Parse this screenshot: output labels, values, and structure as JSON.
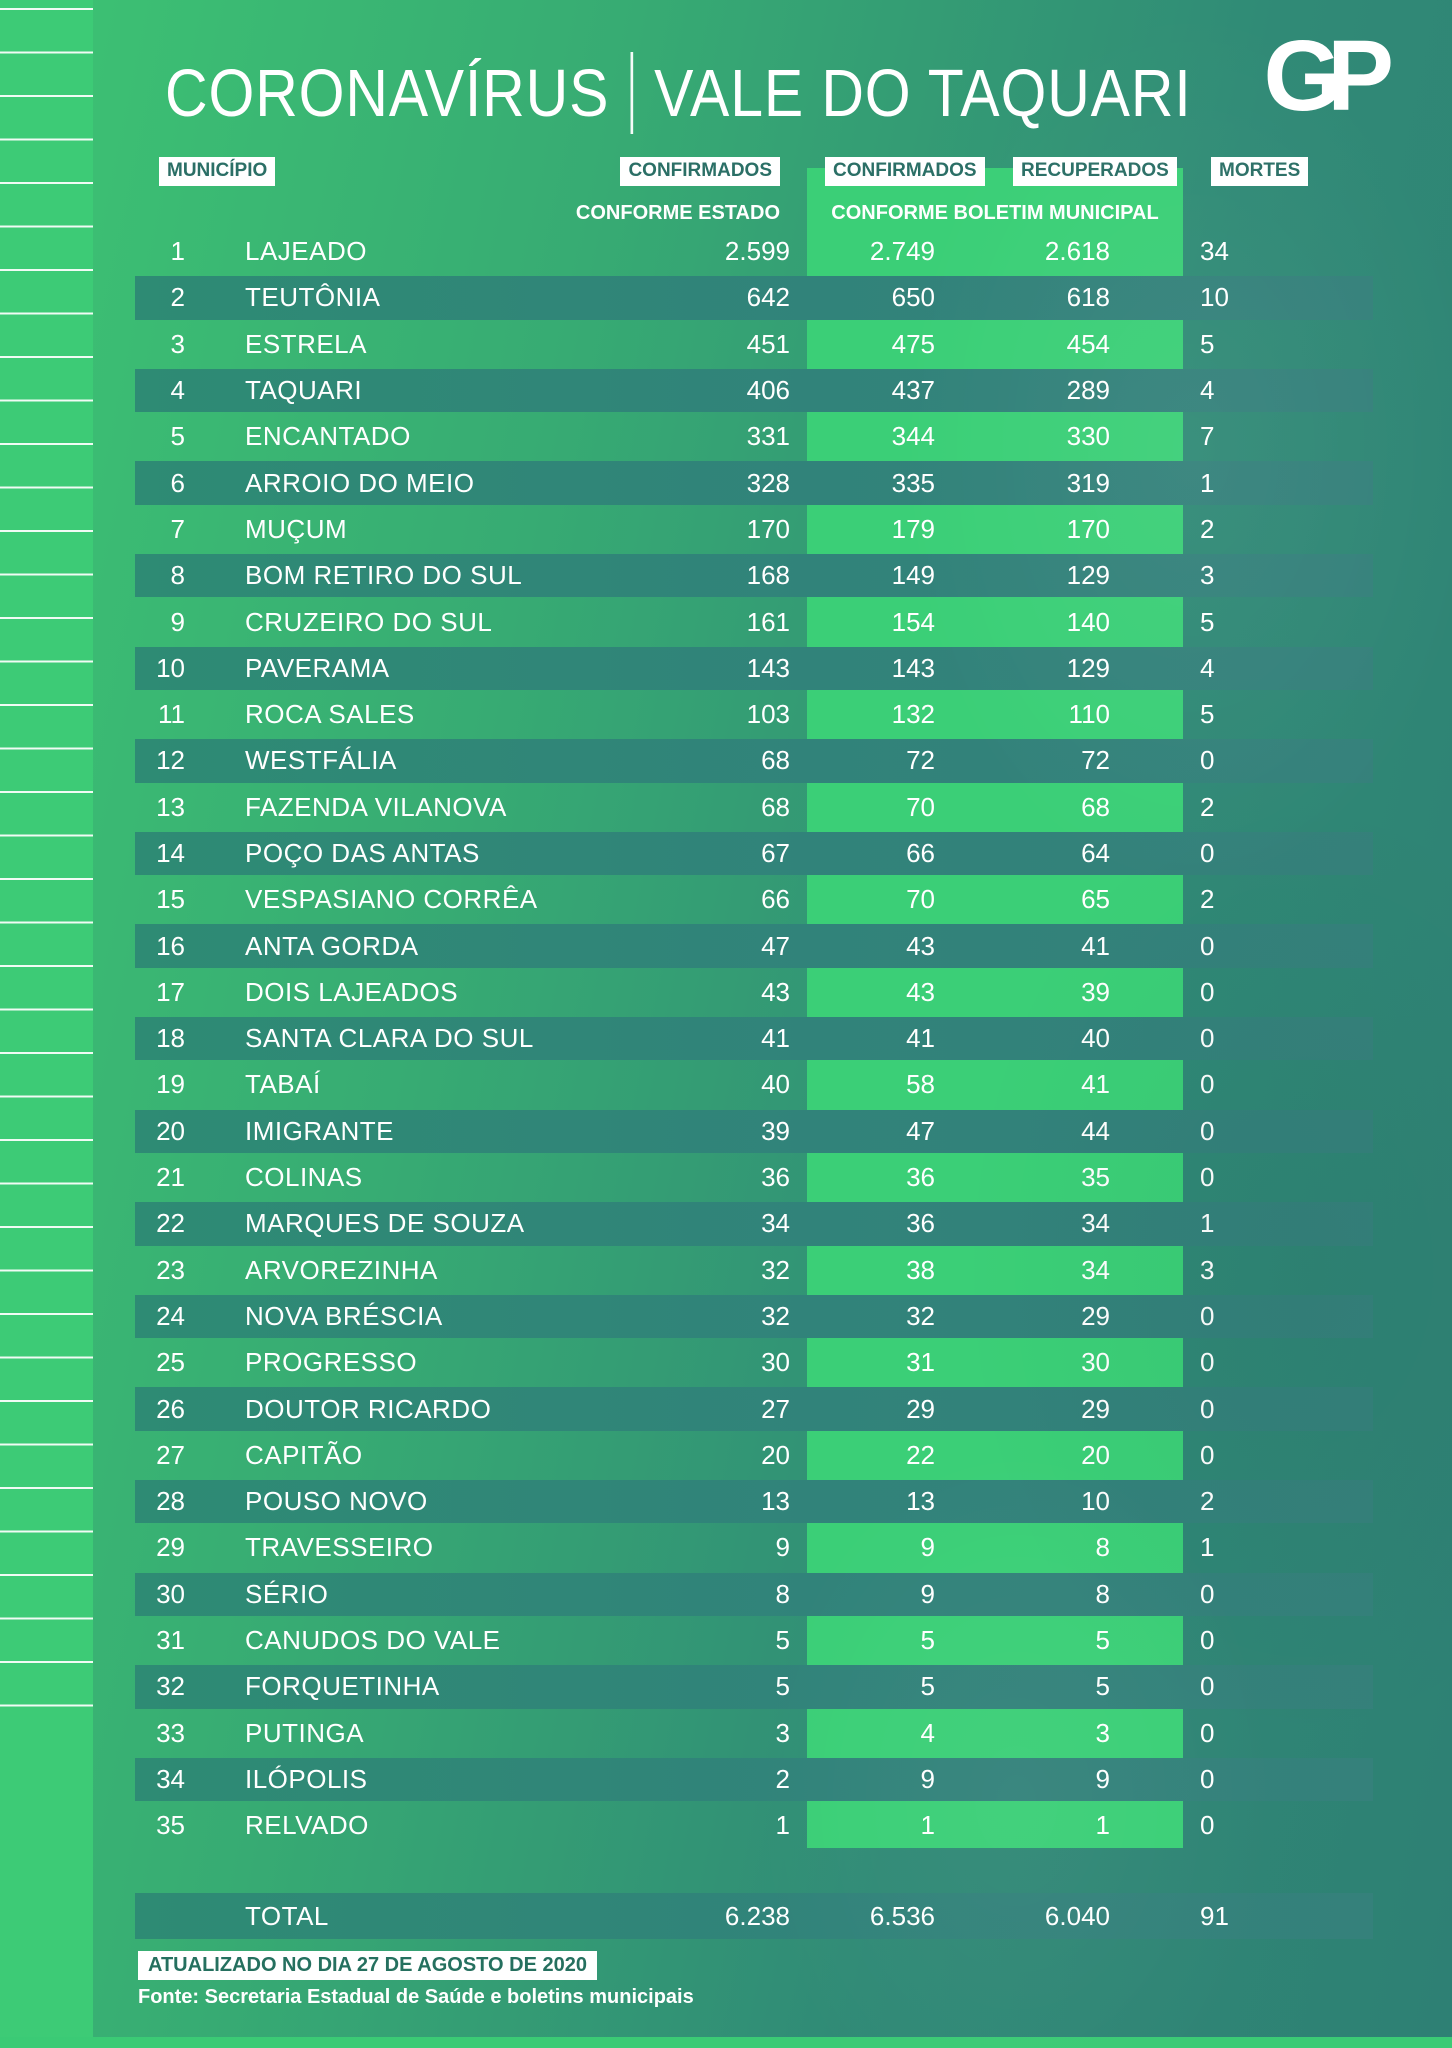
{
  "title": {
    "part1": "CORONAVÍRUS",
    "part2": "VALE DO TAQUARI"
  },
  "logo_text": "GP",
  "columns": {
    "municipio": "MUNICÍPIO",
    "confirmados_estado": "CONFIRMADOS",
    "conforme_estado": "CONFORME ESTADO",
    "confirmados_municipal": "CONFIRMADOS",
    "recuperados": "RECUPERADOS",
    "conforme_municipal": "CONFORME BOLETIM MUNICIPAL",
    "mortes": "MORTES"
  },
  "colors": {
    "background_green": "#3dc373",
    "background_teal": "#2e8074",
    "stripe_teal": "#31837a",
    "bulletin_block_green": "#3bcf77",
    "left_strip_green": "#3dcb76",
    "header_box_text": "#2b6f66",
    "text_white": "#ffffff"
  },
  "chart_data": {
    "type": "table",
    "title": "CORONAVÍRUS | VALE DO TAQUARI",
    "columns": [
      "#",
      "MUNICÍPIO",
      "CONFIRMADOS CONFORME ESTADO",
      "CONFIRMADOS CONFORME BOLETIM MUNICIPAL",
      "RECUPERADOS CONFORME BOLETIM MUNICIPAL",
      "MORTES"
    ],
    "rows": [
      {
        "rank": "1",
        "municipio": "LAJEADO",
        "confirmados_estado": "2.599",
        "confirmados_municipal": "2.749",
        "recuperados": "2.618",
        "mortes": "34"
      },
      {
        "rank": "2",
        "municipio": "TEUTÔNIA",
        "confirmados_estado": "642",
        "confirmados_municipal": "650",
        "recuperados": "618",
        "mortes": "10"
      },
      {
        "rank": "3",
        "municipio": "ESTRELA",
        "confirmados_estado": "451",
        "confirmados_municipal": "475",
        "recuperados": "454",
        "mortes": "5"
      },
      {
        "rank": "4",
        "municipio": "TAQUARI",
        "confirmados_estado": "406",
        "confirmados_municipal": "437",
        "recuperados": "289",
        "mortes": "4"
      },
      {
        "rank": "5",
        "municipio": "ENCANTADO",
        "confirmados_estado": "331",
        "confirmados_municipal": "344",
        "recuperados": "330",
        "mortes": "7"
      },
      {
        "rank": "6",
        "municipio": "ARROIO DO MEIO",
        "confirmados_estado": "328",
        "confirmados_municipal": "335",
        "recuperados": "319",
        "mortes": "1"
      },
      {
        "rank": "7",
        "municipio": "MUÇUM",
        "confirmados_estado": "170",
        "confirmados_municipal": "179",
        "recuperados": "170",
        "mortes": "2"
      },
      {
        "rank": "8",
        "municipio": "BOM RETIRO DO SUL",
        "confirmados_estado": "168",
        "confirmados_municipal": "149",
        "recuperados": "129",
        "mortes": "3"
      },
      {
        "rank": "9",
        "municipio": "CRUZEIRO DO SUL",
        "confirmados_estado": "161",
        "confirmados_municipal": "154",
        "recuperados": "140",
        "mortes": "5"
      },
      {
        "rank": "10",
        "municipio": "PAVERAMA",
        "confirmados_estado": "143",
        "confirmados_municipal": "143",
        "recuperados": "129",
        "mortes": "4"
      },
      {
        "rank": "11",
        "municipio": "ROCA SALES",
        "confirmados_estado": "103",
        "confirmados_municipal": "132",
        "recuperados": "110",
        "mortes": "5"
      },
      {
        "rank": "12",
        "municipio": "WESTFÁLIA",
        "confirmados_estado": "68",
        "confirmados_municipal": "72",
        "recuperados": "72",
        "mortes": "0"
      },
      {
        "rank": "13",
        "municipio": "FAZENDA VILANOVA",
        "confirmados_estado": "68",
        "confirmados_municipal": "70",
        "recuperados": "68",
        "mortes": "2"
      },
      {
        "rank": "14",
        "municipio": "POÇO DAS ANTAS",
        "confirmados_estado": "67",
        "confirmados_municipal": "66",
        "recuperados": "64",
        "mortes": "0"
      },
      {
        "rank": "15",
        "municipio": "VESPASIANO CORRÊA",
        "confirmados_estado": "66",
        "confirmados_municipal": "70",
        "recuperados": "65",
        "mortes": "2"
      },
      {
        "rank": "16",
        "municipio": "ANTA GORDA",
        "confirmados_estado": "47",
        "confirmados_municipal": "43",
        "recuperados": "41",
        "mortes": "0"
      },
      {
        "rank": "17",
        "municipio": "DOIS LAJEADOS",
        "confirmados_estado": "43",
        "confirmados_municipal": "43",
        "recuperados": "39",
        "mortes": "0"
      },
      {
        "rank": "18",
        "municipio": "SANTA CLARA DO SUL",
        "confirmados_estado": "41",
        "confirmados_municipal": "41",
        "recuperados": "40",
        "mortes": "0"
      },
      {
        "rank": "19",
        "municipio": "TABAÍ",
        "confirmados_estado": "40",
        "confirmados_municipal": "58",
        "recuperados": "41",
        "mortes": "0"
      },
      {
        "rank": "20",
        "municipio": "IMIGRANTE",
        "confirmados_estado": "39",
        "confirmados_municipal": "47",
        "recuperados": "44",
        "mortes": "0"
      },
      {
        "rank": "21",
        "municipio": "COLINAS",
        "confirmados_estado": "36",
        "confirmados_municipal": "36",
        "recuperados": "35",
        "mortes": "0"
      },
      {
        "rank": "22",
        "municipio": "MARQUES DE SOUZA",
        "confirmados_estado": "34",
        "confirmados_municipal": "36",
        "recuperados": "34",
        "mortes": "1"
      },
      {
        "rank": "23",
        "municipio": "ARVOREZINHA",
        "confirmados_estado": "32",
        "confirmados_municipal": "38",
        "recuperados": "34",
        "mortes": "3"
      },
      {
        "rank": "24",
        "municipio": "NOVA BRÉSCIA",
        "confirmados_estado": "32",
        "confirmados_municipal": "32",
        "recuperados": "29",
        "mortes": "0"
      },
      {
        "rank": "25",
        "municipio": "PROGRESSO",
        "confirmados_estado": "30",
        "confirmados_municipal": "31",
        "recuperados": "30",
        "mortes": "0"
      },
      {
        "rank": "26",
        "municipio": "DOUTOR RICARDO",
        "confirmados_estado": "27",
        "confirmados_municipal": "29",
        "recuperados": "29",
        "mortes": "0"
      },
      {
        "rank": "27",
        "municipio": "CAPITÃO",
        "confirmados_estado": "20",
        "confirmados_municipal": "22",
        "recuperados": "20",
        "mortes": "0"
      },
      {
        "rank": "28",
        "municipio": "POUSO NOVO",
        "confirmados_estado": "13",
        "confirmados_municipal": "13",
        "recuperados": "10",
        "mortes": "2"
      },
      {
        "rank": "29",
        "municipio": "TRAVESSEIRO",
        "confirmados_estado": "9",
        "confirmados_municipal": "9",
        "recuperados": "8",
        "mortes": "1"
      },
      {
        "rank": "30",
        "municipio": "SÉRIO",
        "confirmados_estado": "8",
        "confirmados_municipal": "9",
        "recuperados": "8",
        "mortes": "0"
      },
      {
        "rank": "31",
        "municipio": "CANUDOS DO VALE",
        "confirmados_estado": "5",
        "confirmados_municipal": "5",
        "recuperados": "5",
        "mortes": "0"
      },
      {
        "rank": "32",
        "municipio": "FORQUETINHA",
        "confirmados_estado": "5",
        "confirmados_municipal": "5",
        "recuperados": "5",
        "mortes": "0"
      },
      {
        "rank": "33",
        "municipio": "PUTINGA",
        "confirmados_estado": "3",
        "confirmados_municipal": "4",
        "recuperados": "3",
        "mortes": "0"
      },
      {
        "rank": "34",
        "municipio": "ILÓPOLIS",
        "confirmados_estado": "2",
        "confirmados_municipal": "9",
        "recuperados": "9",
        "mortes": "0"
      },
      {
        "rank": "35",
        "municipio": "RELVADO",
        "confirmados_estado": "1",
        "confirmados_municipal": "1",
        "recuperados": "1",
        "mortes": "0"
      }
    ],
    "total": {
      "label": "TOTAL",
      "confirmados_estado": "6.238",
      "confirmados_municipal": "6.536",
      "recuperados": "6.040",
      "mortes": "91"
    }
  },
  "footer": {
    "updated": "ATUALIZADO NO DIA 27 DE AGOSTO DE 2020",
    "source": "Fonte: Secretaria Estadual de Saúde e boletins municipais"
  }
}
